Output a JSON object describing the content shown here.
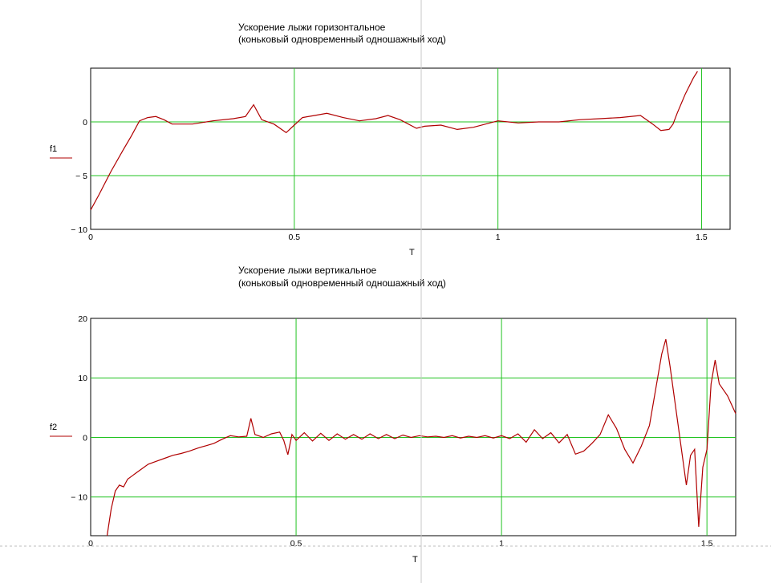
{
  "chart_data": [
    {
      "type": "line",
      "title_line1": "Ускорение лыжи горизонтальное",
      "title_line2": "(коньковый одновременный одношажный ход)",
      "xlabel": "T",
      "ylabel": "f1",
      "xlim": [
        0,
        1.57
      ],
      "ylim": [
        -10,
        5
      ],
      "xticks": [
        {
          "v": 0,
          "label": "0"
        },
        {
          "v": 0.5,
          "label": "0.5"
        },
        {
          "v": 1,
          "label": "1"
        },
        {
          "v": 1.5,
          "label": "1.5"
        }
      ],
      "yticks": [
        {
          "v": -10,
          "label": "− 10"
        },
        {
          "v": -5,
          "label": "− 5"
        },
        {
          "v": 0,
          "label": "0"
        }
      ],
      "grid_x": [
        0.5,
        1.0,
        1.5
      ],
      "grid_y": [
        -5,
        0
      ],
      "grid": true,
      "series": [
        {
          "color": "#b00000",
          "x": [
            0,
            0.02,
            0.05,
            0.08,
            0.1,
            0.12,
            0.14,
            0.16,
            0.18,
            0.2,
            0.25,
            0.3,
            0.35,
            0.38,
            0.4,
            0.42,
            0.45,
            0.48,
            0.5,
            0.52,
            0.55,
            0.58,
            0.62,
            0.66,
            0.7,
            0.73,
            0.76,
            0.8,
            0.82,
            0.86,
            0.9,
            0.94,
            0.98,
            1.0,
            1.05,
            1.1,
            1.15,
            1.2,
            1.25,
            1.3,
            1.35,
            1.38,
            1.4,
            1.42,
            1.43,
            1.44,
            1.46,
            1.48,
            1.49
          ],
          "y": [
            -8.2,
            -6.8,
            -4.6,
            -2.6,
            -1.3,
            0.1,
            0.4,
            0.5,
            0.2,
            -0.2,
            -0.2,
            0.1,
            0.3,
            0.5,
            1.6,
            0.2,
            -0.2,
            -1.0,
            -0.3,
            0.4,
            0.6,
            0.8,
            0.4,
            0.1,
            0.3,
            0.6,
            0.2,
            -0.6,
            -0.4,
            -0.3,
            -0.7,
            -0.5,
            -0.1,
            0.1,
            -0.1,
            0.0,
            0.0,
            0.2,
            0.3,
            0.4,
            0.6,
            -0.2,
            -0.8,
            -0.7,
            -0.2,
            0.8,
            2.6,
            4.1,
            4.7
          ]
        }
      ]
    },
    {
      "type": "line",
      "title_line1": "Ускорение лыжи вертикальное",
      "title_line2": "(коньковый одновременный одношажный ход)",
      "xlabel": "T",
      "ylabel": "f2",
      "xlim": [
        0,
        1.57
      ],
      "ylim": [
        -16.5,
        20
      ],
      "xticks": [
        {
          "v": 0,
          "label": "0"
        },
        {
          "v": 0.5,
          "label": "0.5"
        },
        {
          "v": 1,
          "label": "1"
        },
        {
          "v": 1.5,
          "label": "1.5"
        }
      ],
      "yticks": [
        {
          "v": -10,
          "label": "− 10"
        },
        {
          "v": 0,
          "label": "0"
        },
        {
          "v": 10,
          "label": "10"
        },
        {
          "v": 20,
          "label": "20"
        }
      ],
      "grid_x": [
        0.5,
        1.0,
        1.5
      ],
      "grid_y": [
        -10,
        0,
        10
      ],
      "grid": true,
      "series": [
        {
          "color": "#b00000",
          "x": [
            0.04,
            0.05,
            0.06,
            0.07,
            0.08,
            0.09,
            0.1,
            0.11,
            0.12,
            0.14,
            0.16,
            0.18,
            0.2,
            0.22,
            0.24,
            0.26,
            0.28,
            0.3,
            0.32,
            0.34,
            0.36,
            0.38,
            0.39,
            0.4,
            0.42,
            0.44,
            0.46,
            0.47,
            0.48,
            0.49,
            0.5,
            0.52,
            0.54,
            0.56,
            0.58,
            0.6,
            0.62,
            0.64,
            0.66,
            0.68,
            0.7,
            0.72,
            0.74,
            0.76,
            0.78,
            0.8,
            0.82,
            0.84,
            0.86,
            0.88,
            0.9,
            0.92,
            0.94,
            0.96,
            0.98,
            1.0,
            1.02,
            1.04,
            1.06,
            1.08,
            1.1,
            1.12,
            1.14,
            1.16,
            1.18,
            1.2,
            1.22,
            1.24,
            1.26,
            1.28,
            1.3,
            1.32,
            1.34,
            1.36,
            1.37,
            1.38,
            1.39,
            1.4,
            1.41,
            1.42,
            1.43,
            1.44,
            1.45,
            1.46,
            1.47,
            1.48,
            1.49,
            1.5,
            1.51,
            1.52,
            1.53,
            1.55,
            1.57
          ],
          "y": [
            -16.5,
            -12,
            -9,
            -8,
            -8.3,
            -7,
            -6.5,
            -6,
            -5.5,
            -4.5,
            -4,
            -3.5,
            -3,
            -2.7,
            -2.3,
            -1.8,
            -1.4,
            -1,
            -0.3,
            0.3,
            0.1,
            0.2,
            3.2,
            0.5,
            0.0,
            0.6,
            0.9,
            -0.5,
            -2.9,
            0.5,
            -0.5,
            0.8,
            -0.6,
            0.7,
            -0.5,
            0.6,
            -0.3,
            0.5,
            -0.3,
            0.6,
            -0.2,
            0.5,
            -0.2,
            0.4,
            0.0,
            0.3,
            0.1,
            0.2,
            0.0,
            0.3,
            -0.1,
            0.2,
            0.0,
            0.3,
            -0.1,
            0.3,
            -0.2,
            0.6,
            -0.8,
            1.3,
            -0.2,
            0.8,
            -0.9,
            0.5,
            -2.8,
            -2.3,
            -1,
            0.5,
            3.8,
            1.5,
            -2,
            -4.3,
            -1.5,
            2,
            6,
            10,
            14,
            16.5,
            12,
            7,
            2,
            -3,
            -8,
            -3,
            -2,
            -15,
            -5,
            -2,
            9,
            13,
            9,
            7,
            4
          ]
        }
      ]
    }
  ]
}
